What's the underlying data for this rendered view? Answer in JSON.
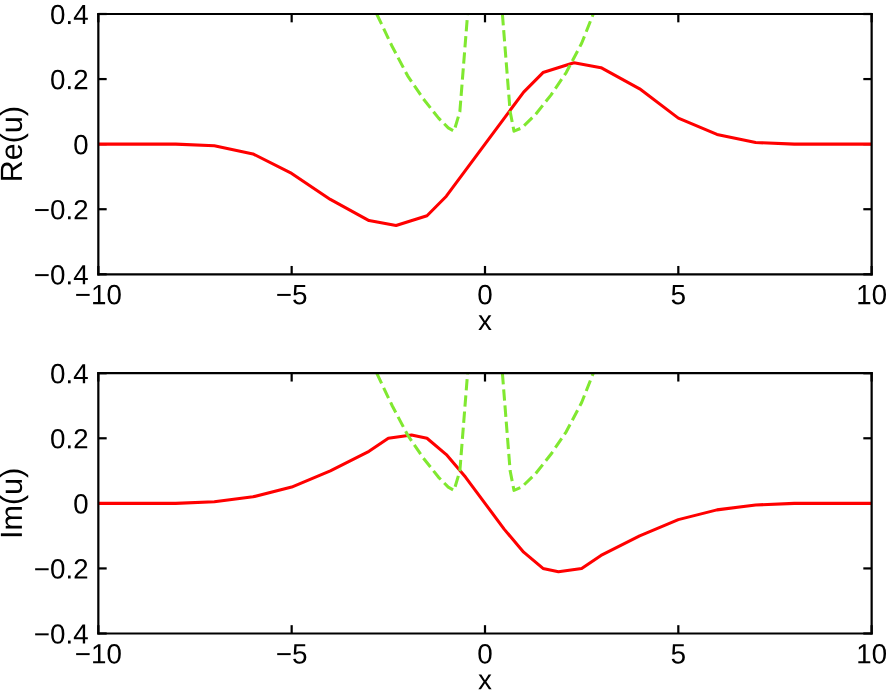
{
  "chart_data": [
    {
      "type": "line",
      "xlabel": "x",
      "ylabel": "Re(u)",
      "xlim": [
        -10,
        10
      ],
      "ylim": [
        -0.4,
        0.4
      ],
      "xticks": [
        -10,
        -5,
        0,
        5,
        10
      ],
      "yticks": [
        -0.4,
        -0.2,
        0,
        0.2,
        0.4
      ],
      "grid": false,
      "series": [
        {
          "color": "#ff0000",
          "line_style": "solid",
          "x": [
            -10,
            -8,
            -7,
            -6,
            -5,
            -4,
            -3,
            -2.3,
            -1.5,
            -1,
            -0.5,
            0,
            0.5,
            1,
            1.5,
            2.3,
            3,
            4,
            5,
            6,
            7,
            8,
            10
          ],
          "values": [
            0,
            0,
            -0.005,
            -0.03,
            -0.09,
            -0.17,
            -0.235,
            -0.25,
            -0.22,
            -0.16,
            -0.08,
            0,
            0.08,
            0.16,
            0.22,
            0.25,
            0.235,
            0.17,
            0.08,
            0.03,
            0.005,
            0,
            0
          ]
        },
        {
          "color": "#80e830",
          "line_style": "dashed",
          "x": [
            -2.8,
            -2.4,
            -2,
            -1.6,
            -1.2,
            -0.95,
            -0.8,
            -0.65,
            -0.55,
            -0.45,
            0,
            0.45,
            0.55,
            0.65,
            0.75,
            0.95,
            1.3,
            1.7,
            2.1,
            2.5,
            2.8
          ],
          "values": [
            0.4,
            0.3,
            0.21,
            0.14,
            0.08,
            0.05,
            0.04,
            0.1,
            0.25,
            0.4,
            null,
            0.4,
            0.25,
            0.1,
            0.04,
            0.05,
            0.09,
            0.15,
            0.22,
            0.31,
            0.4
          ]
        }
      ]
    },
    {
      "type": "line",
      "xlabel": "x",
      "ylabel": "Im(u)",
      "xlim": [
        -10,
        10
      ],
      "ylim": [
        -0.4,
        0.4
      ],
      "xticks": [
        -10,
        -5,
        0,
        5,
        10
      ],
      "yticks": [
        -0.4,
        -0.2,
        0,
        0.2,
        0.4
      ],
      "grid": false,
      "series": [
        {
          "color": "#ff0000",
          "line_style": "solid",
          "x": [
            -10,
            -8,
            -7,
            -6,
            -5,
            -4,
            -3,
            -2.5,
            -1.9,
            -1.5,
            -1,
            -0.5,
            0,
            0.5,
            1,
            1.5,
            1.9,
            2.5,
            3,
            4,
            5,
            6,
            7,
            8,
            10
          ],
          "values": [
            0,
            0,
            0.005,
            0.02,
            0.05,
            0.1,
            0.16,
            0.2,
            0.21,
            0.2,
            0.15,
            0.08,
            0,
            -0.08,
            -0.15,
            -0.2,
            -0.21,
            -0.2,
            -0.16,
            -0.1,
            -0.05,
            -0.02,
            -0.005,
            0,
            0
          ]
        },
        {
          "color": "#80e830",
          "line_style": "dashed",
          "x": [
            -2.8,
            -2.4,
            -2,
            -1.6,
            -1.2,
            -0.95,
            -0.8,
            -0.65,
            -0.55,
            -0.45,
            0,
            0.45,
            0.55,
            0.65,
            0.75,
            0.95,
            1.3,
            1.7,
            2.1,
            2.5,
            2.8
          ],
          "values": [
            0.4,
            0.3,
            0.21,
            0.14,
            0.08,
            0.05,
            0.04,
            0.1,
            0.25,
            0.4,
            null,
            0.4,
            0.25,
            0.1,
            0.04,
            0.05,
            0.09,
            0.15,
            0.22,
            0.31,
            0.4
          ]
        }
      ]
    }
  ]
}
